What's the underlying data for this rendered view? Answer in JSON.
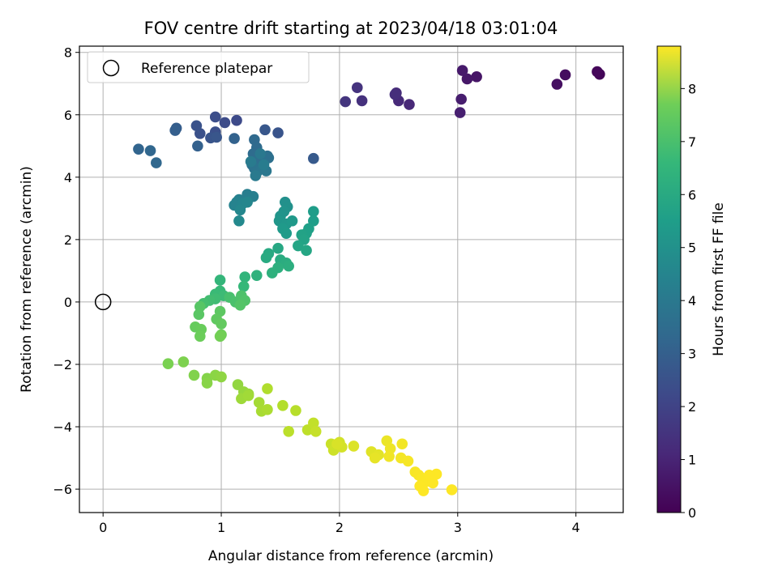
{
  "chart_data": {
    "type": "scatter",
    "title": "FOV centre drift starting at 2023/04/18 03:01:04",
    "xlabel": "Angular distance from reference (arcmin)",
    "ylabel": "Rotation from reference (arcmin)",
    "xlim": [
      -0.2,
      4.4
    ],
    "ylim": [
      -6.75,
      8.2
    ],
    "xticks": [
      "0",
      "1",
      "2",
      "3",
      "4"
    ],
    "yticks": [
      "−6",
      "−4",
      "−2",
      "0",
      "2",
      "4",
      "6",
      "8"
    ],
    "grid": true,
    "legend": {
      "placement": "top-left",
      "entries": [
        "Reference platepar"
      ]
    },
    "reference_point": {
      "x": 0,
      "y": 0
    },
    "colorbar": {
      "label": "Hours from first FF file",
      "range": [
        0,
        8.8
      ],
      "ticks": [
        "0",
        "1",
        "2",
        "3",
        "4",
        "5",
        "6",
        "7",
        "8"
      ],
      "colormap": "viridis"
    },
    "points": [
      {
        "x": 4.2,
        "y": 7.3,
        "h": 0.1
      },
      {
        "x": 4.18,
        "y": 7.38,
        "h": 0.15
      },
      {
        "x": 3.91,
        "y": 7.28,
        "h": 0.3
      },
      {
        "x": 3.84,
        "y": 6.98,
        "h": 0.35
      },
      {
        "x": 3.16,
        "y": 7.22,
        "h": 0.5
      },
      {
        "x": 3.08,
        "y": 7.15,
        "h": 0.55
      },
      {
        "x": 3.04,
        "y": 7.42,
        "h": 0.6
      },
      {
        "x": 3.03,
        "y": 6.5,
        "h": 0.7
      },
      {
        "x": 3.02,
        "y": 6.07,
        "h": 0.75
      },
      {
        "x": 2.59,
        "y": 6.33,
        "h": 1.0
      },
      {
        "x": 2.5,
        "y": 6.45,
        "h": 1.05
      },
      {
        "x": 2.48,
        "y": 6.7,
        "h": 1.1
      },
      {
        "x": 2.47,
        "y": 6.65,
        "h": 1.15
      },
      {
        "x": 2.19,
        "y": 6.45,
        "h": 1.25
      },
      {
        "x": 2.15,
        "y": 6.87,
        "h": 1.3
      },
      {
        "x": 2.05,
        "y": 6.42,
        "h": 1.35
      },
      {
        "x": 1.13,
        "y": 5.82,
        "h": 2.0
      },
      {
        "x": 1.03,
        "y": 5.75,
        "h": 2.05
      },
      {
        "x": 0.95,
        "y": 5.93,
        "h": 2.1
      },
      {
        "x": 0.95,
        "y": 5.45,
        "h": 2.15
      },
      {
        "x": 0.82,
        "y": 5.4,
        "h": 2.2
      },
      {
        "x": 0.79,
        "y": 5.65,
        "h": 2.25
      },
      {
        "x": 0.91,
        "y": 5.26,
        "h": 2.3
      },
      {
        "x": 0.96,
        "y": 5.28,
        "h": 2.35
      },
      {
        "x": 1.48,
        "y": 5.42,
        "h": 2.3
      },
      {
        "x": 1.37,
        "y": 5.52,
        "h": 2.4
      },
      {
        "x": 1.78,
        "y": 4.6,
        "h": 2.5
      },
      {
        "x": 0.62,
        "y": 5.57,
        "h": 2.6
      },
      {
        "x": 0.61,
        "y": 5.5,
        "h": 2.65
      },
      {
        "x": 0.8,
        "y": 5.0,
        "h": 2.7
      },
      {
        "x": 1.11,
        "y": 5.24,
        "h": 2.75
      },
      {
        "x": 0.3,
        "y": 4.9,
        "h": 2.85
      },
      {
        "x": 0.4,
        "y": 4.85,
        "h": 2.9
      },
      {
        "x": 0.45,
        "y": 4.46,
        "h": 2.95
      },
      {
        "x": 1.28,
        "y": 5.2,
        "h": 3.0
      },
      {
        "x": 1.3,
        "y": 4.95,
        "h": 3.05
      },
      {
        "x": 1.27,
        "y": 4.75,
        "h": 3.1
      },
      {
        "x": 1.33,
        "y": 4.55,
        "h": 3.15
      },
      {
        "x": 1.39,
        "y": 4.68,
        "h": 3.2
      },
      {
        "x": 1.4,
        "y": 4.62,
        "h": 3.25
      },
      {
        "x": 1.26,
        "y": 4.4,
        "h": 3.3
      },
      {
        "x": 1.28,
        "y": 4.28,
        "h": 3.35
      },
      {
        "x": 1.3,
        "y": 4.15,
        "h": 3.4
      },
      {
        "x": 1.35,
        "y": 4.3,
        "h": 3.45
      },
      {
        "x": 1.38,
        "y": 4.2,
        "h": 3.5
      },
      {
        "x": 1.33,
        "y": 4.75,
        "h": 3.55
      },
      {
        "x": 1.29,
        "y": 4.05,
        "h": 3.6
      },
      {
        "x": 1.25,
        "y": 4.5,
        "h": 3.65
      },
      {
        "x": 1.36,
        "y": 4.4,
        "h": 3.7
      },
      {
        "x": 1.22,
        "y": 3.45,
        "h": 3.75
      },
      {
        "x": 1.27,
        "y": 3.38,
        "h": 3.8
      },
      {
        "x": 1.15,
        "y": 3.28,
        "h": 3.85
      },
      {
        "x": 1.13,
        "y": 3.2,
        "h": 3.9
      },
      {
        "x": 1.11,
        "y": 3.1,
        "h": 3.95
      },
      {
        "x": 1.18,
        "y": 3.15,
        "h": 4.0
      },
      {
        "x": 1.22,
        "y": 3.2,
        "h": 4.05
      },
      {
        "x": 1.16,
        "y": 2.95,
        "h": 4.1
      },
      {
        "x": 1.15,
        "y": 2.6,
        "h": 4.15
      },
      {
        "x": 1.54,
        "y": 3.2,
        "h": 4.4
      },
      {
        "x": 1.56,
        "y": 3.05,
        "h": 4.45
      },
      {
        "x": 1.53,
        "y": 2.9,
        "h": 4.5
      },
      {
        "x": 1.5,
        "y": 2.75,
        "h": 4.55
      },
      {
        "x": 1.49,
        "y": 2.6,
        "h": 4.6
      },
      {
        "x": 1.55,
        "y": 2.5,
        "h": 4.65
      },
      {
        "x": 1.6,
        "y": 2.6,
        "h": 4.7
      },
      {
        "x": 1.52,
        "y": 2.35,
        "h": 4.75
      },
      {
        "x": 1.55,
        "y": 2.2,
        "h": 4.8
      },
      {
        "x": 1.78,
        "y": 2.9,
        "h": 4.85
      },
      {
        "x": 1.78,
        "y": 2.6,
        "h": 4.9
      },
      {
        "x": 1.74,
        "y": 2.35,
        "h": 4.95
      },
      {
        "x": 1.72,
        "y": 2.2,
        "h": 5.0
      },
      {
        "x": 1.68,
        "y": 2.15,
        "h": 5.05
      },
      {
        "x": 1.7,
        "y": 2.0,
        "h": 5.1
      },
      {
        "x": 1.65,
        "y": 1.8,
        "h": 5.15
      },
      {
        "x": 1.72,
        "y": 1.65,
        "h": 5.2
      },
      {
        "x": 1.48,
        "y": 1.72,
        "h": 5.25
      },
      {
        "x": 1.4,
        "y": 1.55,
        "h": 5.3
      },
      {
        "x": 1.38,
        "y": 1.42,
        "h": 5.35
      },
      {
        "x": 1.5,
        "y": 1.35,
        "h": 5.4
      },
      {
        "x": 1.55,
        "y": 1.25,
        "h": 5.45
      },
      {
        "x": 1.57,
        "y": 1.15,
        "h": 5.5
      },
      {
        "x": 1.48,
        "y": 1.1,
        "h": 5.55
      },
      {
        "x": 1.43,
        "y": 0.93,
        "h": 5.6
      },
      {
        "x": 1.3,
        "y": 0.85,
        "h": 5.65
      },
      {
        "x": 1.2,
        "y": 0.8,
        "h": 5.75
      },
      {
        "x": 0.99,
        "y": 0.7,
        "h": 5.8
      },
      {
        "x": 1.19,
        "y": 0.5,
        "h": 5.85
      },
      {
        "x": 0.99,
        "y": 0.35,
        "h": 5.9
      },
      {
        "x": 0.95,
        "y": 0.25,
        "h": 5.95
      },
      {
        "x": 1.02,
        "y": 0.2,
        "h": 6.0
      },
      {
        "x": 0.95,
        "y": 0.1,
        "h": 6.05
      },
      {
        "x": 0.9,
        "y": 0.05,
        "h": 6.1
      },
      {
        "x": 0.85,
        "y": -0.05,
        "h": 6.15
      },
      {
        "x": 1.07,
        "y": 0.15,
        "h": 6.2
      },
      {
        "x": 1.12,
        "y": 0.0,
        "h": 6.25
      },
      {
        "x": 1.17,
        "y": 0.2,
        "h": 6.3
      },
      {
        "x": 1.2,
        "y": 0.05,
        "h": 6.35
      },
      {
        "x": 1.16,
        "y": -0.1,
        "h": 6.4
      },
      {
        "x": 0.82,
        "y": -0.15,
        "h": 6.45
      },
      {
        "x": 0.81,
        "y": -0.4,
        "h": 6.5
      },
      {
        "x": 0.99,
        "y": -0.3,
        "h": 6.55
      },
      {
        "x": 0.96,
        "y": -0.55,
        "h": 6.6
      },
      {
        "x": 1.0,
        "y": -0.7,
        "h": 6.65
      },
      {
        "x": 0.78,
        "y": -0.8,
        "h": 6.7
      },
      {
        "x": 0.83,
        "y": -0.88,
        "h": 6.75
      },
      {
        "x": 0.82,
        "y": -1.1,
        "h": 6.8
      },
      {
        "x": 1.0,
        "y": -1.05,
        "h": 6.85
      },
      {
        "x": 0.99,
        "y": -1.1,
        "h": 6.9
      },
      {
        "x": 0.55,
        "y": -1.98,
        "h": 7.0
      },
      {
        "x": 0.68,
        "y": -1.92,
        "h": 7.05
      },
      {
        "x": 0.77,
        "y": -2.35,
        "h": 7.1
      },
      {
        "x": 0.88,
        "y": -2.45,
        "h": 7.15
      },
      {
        "x": 0.88,
        "y": -2.6,
        "h": 7.2
      },
      {
        "x": 0.95,
        "y": -2.35,
        "h": 7.25
      },
      {
        "x": 1.0,
        "y": -2.4,
        "h": 7.3
      },
      {
        "x": 1.14,
        "y": -2.65,
        "h": 7.35
      },
      {
        "x": 1.19,
        "y": -2.88,
        "h": 7.4
      },
      {
        "x": 1.23,
        "y": -2.95,
        "h": 7.45
      },
      {
        "x": 1.17,
        "y": -3.1,
        "h": 7.5
      },
      {
        "x": 1.23,
        "y": -3.0,
        "h": 7.55
      },
      {
        "x": 1.32,
        "y": -3.22,
        "h": 7.6
      },
      {
        "x": 1.34,
        "y": -3.5,
        "h": 7.65
      },
      {
        "x": 1.39,
        "y": -3.45,
        "h": 7.7
      },
      {
        "x": 1.39,
        "y": -2.78,
        "h": 7.75
      },
      {
        "x": 1.52,
        "y": -3.32,
        "h": 7.8
      },
      {
        "x": 1.63,
        "y": -3.48,
        "h": 7.85
      },
      {
        "x": 1.57,
        "y": -4.15,
        "h": 7.9
      },
      {
        "x": 1.73,
        "y": -4.1,
        "h": 7.95
      },
      {
        "x": 1.78,
        "y": -3.88,
        "h": 8.0
      },
      {
        "x": 1.8,
        "y": -4.15,
        "h": 8.05
      },
      {
        "x": 1.93,
        "y": -4.55,
        "h": 8.1
      },
      {
        "x": 1.95,
        "y": -4.75,
        "h": 8.15
      },
      {
        "x": 2.0,
        "y": -4.5,
        "h": 8.2
      },
      {
        "x": 2.02,
        "y": -4.65,
        "h": 8.25
      },
      {
        "x": 1.98,
        "y": -4.55,
        "h": 8.3
      },
      {
        "x": 2.12,
        "y": -4.62,
        "h": 8.35
      },
      {
        "x": 2.27,
        "y": -4.8,
        "h": 8.4
      },
      {
        "x": 2.33,
        "y": -4.9,
        "h": 8.45
      },
      {
        "x": 2.3,
        "y": -5.0,
        "h": 8.5
      },
      {
        "x": 2.4,
        "y": -4.45,
        "h": 8.55
      },
      {
        "x": 2.43,
        "y": -4.7,
        "h": 8.6
      },
      {
        "x": 2.42,
        "y": -4.95,
        "h": 8.62
      },
      {
        "x": 2.53,
        "y": -4.55,
        "h": 8.65
      },
      {
        "x": 2.52,
        "y": -5.0,
        "h": 8.68
      },
      {
        "x": 2.58,
        "y": -5.1,
        "h": 8.7
      },
      {
        "x": 2.64,
        "y": -5.45,
        "h": 8.72
      },
      {
        "x": 2.67,
        "y": -5.55,
        "h": 8.74
      },
      {
        "x": 2.7,
        "y": -5.65,
        "h": 8.76
      },
      {
        "x": 2.74,
        "y": -5.75,
        "h": 8.78
      },
      {
        "x": 2.68,
        "y": -5.9,
        "h": 8.8
      },
      {
        "x": 2.71,
        "y": -6.05,
        "h": 8.8
      },
      {
        "x": 2.79,
        "y": -5.8,
        "h": 8.8
      },
      {
        "x": 2.82,
        "y": -5.52,
        "h": 8.8
      },
      {
        "x": 2.76,
        "y": -5.55,
        "h": 8.8
      },
      {
        "x": 2.95,
        "y": -6.02,
        "h": 8.8
      }
    ]
  }
}
